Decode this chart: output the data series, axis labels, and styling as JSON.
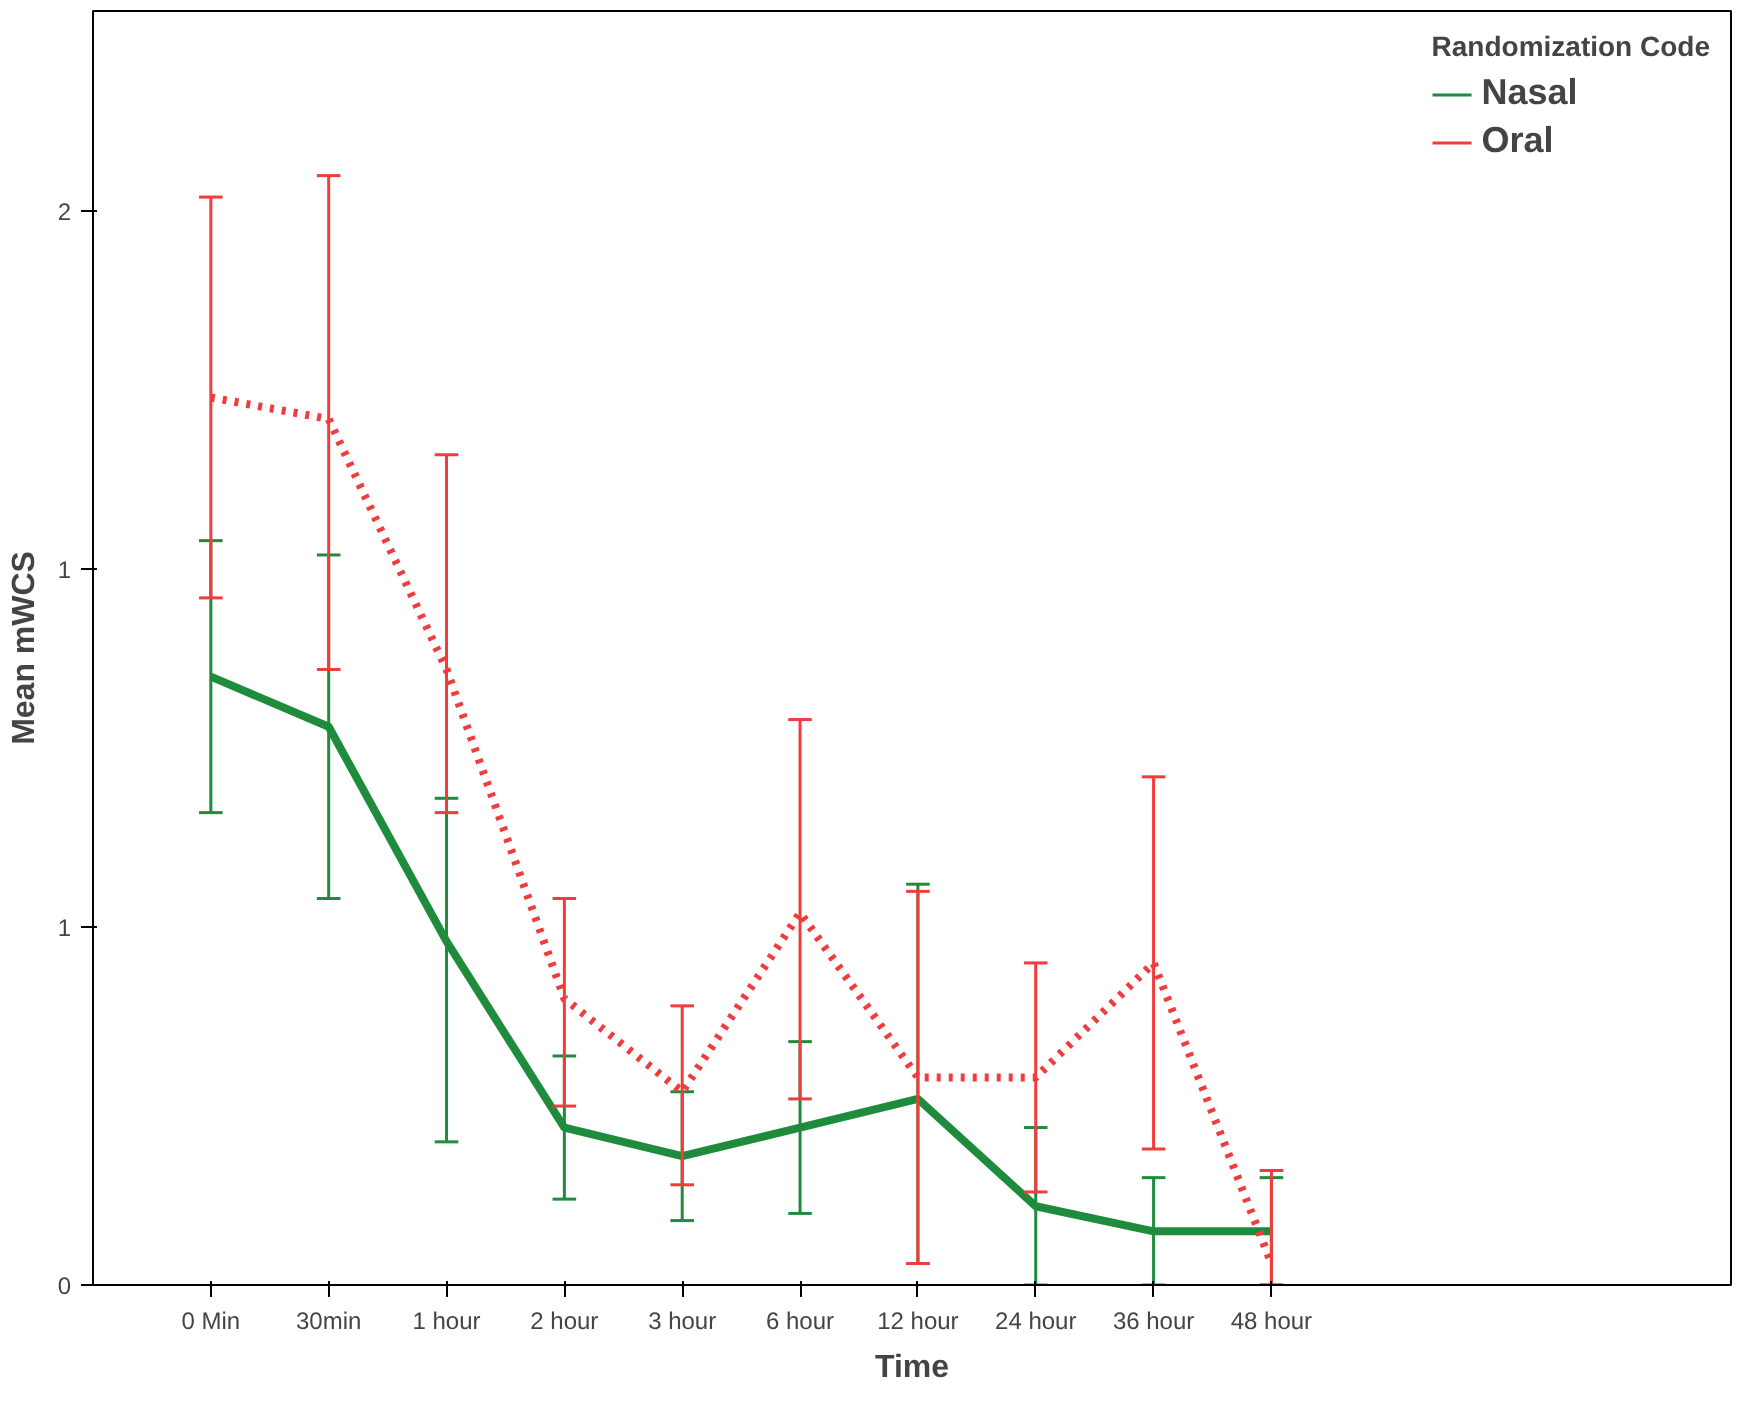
{
  "chart_data": {
    "type": "line",
    "xlabel": "Time",
    "ylabel": "Mean mWCS",
    "legend_title": "Randomization Code",
    "categories": [
      "0 Min",
      "30min",
      "1 hour",
      "2 hour",
      "3 hour",
      "6 hour",
      "12 hour",
      "24 hour",
      "36 hour",
      "48 hour"
    ],
    "ylim": [
      0,
      1.78
    ],
    "yticks": [
      {
        "value": 0,
        "label": "0"
      },
      {
        "value": 0.5,
        "label": "1"
      },
      {
        "value": 1.0,
        "label": "1"
      },
      {
        "value": 1.5,
        "label": "2"
      }
    ],
    "series": [
      {
        "name": "Nasal",
        "color": "#1e8c3c",
        "line_style": "solid",
        "values": [
          0.85,
          0.78,
          0.48,
          0.22,
          0.18,
          0.22,
          0.26,
          0.11,
          0.075,
          0.075
        ],
        "errors": [
          [
            0.66,
            1.04
          ],
          [
            0.54,
            1.02
          ],
          [
            0.2,
            0.68
          ],
          [
            0.12,
            0.32
          ],
          [
            0.09,
            0.27
          ],
          [
            0.1,
            0.34
          ],
          [
            0.03,
            0.56
          ],
          [
            0,
            0.22
          ],
          [
            0,
            0.15
          ],
          [
            0,
            0.15
          ]
        ]
      },
      {
        "name": "Oral",
        "color": "#f03c3c",
        "line_style": "dotted",
        "values": [
          1.24,
          1.21,
          0.86,
          0.4,
          0.27,
          0.52,
          0.29,
          0.29,
          0.45,
          0.03
        ],
        "errors": [
          [
            0.96,
            1.52
          ],
          [
            0.86,
            1.55
          ],
          [
            0.66,
            1.16
          ],
          [
            0.25,
            0.54
          ],
          [
            0.14,
            0.39
          ],
          [
            0.26,
            0.79
          ],
          [
            0.03,
            0.55
          ],
          [
            0.13,
            0.45
          ],
          [
            0.19,
            0.71
          ],
          [
            0,
            0.16
          ]
        ]
      }
    ],
    "marker": "none",
    "grid": false,
    "legend": "top right"
  }
}
